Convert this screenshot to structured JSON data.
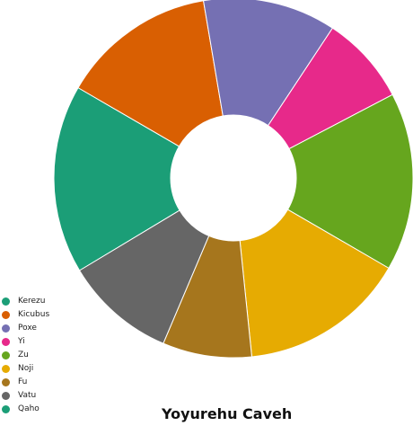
{
  "chart_data": {
    "type": "pie",
    "donut": true,
    "title": "Yoyurehu Caveh",
    "categories": [
      "Kerezu",
      "Kicubus",
      "Poxe",
      "Yi",
      "Zu",
      "Noji",
      "Fu",
      "Vatu",
      "Qaho"
    ],
    "values": [
      16.3,
      13.4,
      11.5,
      7.7,
      15.4,
      14.4,
      7.7,
      9.6,
      0
    ],
    "colors": [
      "#1b9e77",
      "#d95f02",
      "#7570b3",
      "#e7298a",
      "#66a61e",
      "#e6ab02",
      "#a6761d",
      "#666666",
      "#1b9e77"
    ],
    "legend_position": "bottom-left"
  }
}
